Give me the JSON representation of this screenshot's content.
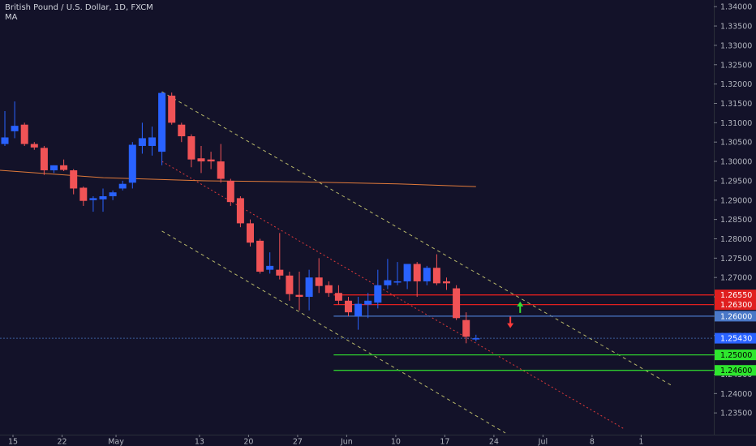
{
  "header": {
    "symbol": "British Pound / U.S. Dollar, 1D, FXCM",
    "indicator": "MA"
  },
  "colors": {
    "background": "#131229",
    "bull": "#2962ff",
    "bear": "#f05356",
    "ma": "#e07a3a",
    "channel": "#b8b86a",
    "midline": "#e03a3a",
    "res_line": "#e01f1f",
    "sup_line": "#2ecc2e",
    "current_line": "#3d5f9e",
    "axis_text": "#b2b5be",
    "arrow_up": "#33dd33",
    "arrow_down": "#ff3b3b"
  },
  "chart_data": {
    "type": "candlestick",
    "y_axis": {
      "range": [
        1.2298,
        1.3413
      ],
      "ticks": [
        "1.34000",
        "1.33500",
        "1.33000",
        "1.32500",
        "1.32000",
        "1.31500",
        "1.31000",
        "1.30500",
        "1.30000",
        "1.29500",
        "1.29000",
        "1.28500",
        "1.28000",
        "1.27500",
        "1.27000",
        "1.26500",
        "1.26000",
        "1.25500",
        "1.25000",
        "1.24500",
        "1.24000",
        "1.23500"
      ]
    },
    "x_axis": {
      "labels": [
        {
          "text": "15",
          "i": 0
        },
        {
          "text": "22",
          "i": 5
        },
        {
          "text": "May",
          "i": 10.5
        },
        {
          "text": "13",
          "i": 19
        },
        {
          "text": "20",
          "i": 24
        },
        {
          "text": "27",
          "i": 29
        },
        {
          "text": "Jun",
          "i": 34
        },
        {
          "text": "10",
          "i": 39
        },
        {
          "text": "17",
          "i": 44
        },
        {
          "text": "24",
          "i": 49
        },
        {
          "text": "Jul",
          "i": 54
        },
        {
          "text": "8",
          "i": 59
        },
        {
          "text": "1",
          "i": 64
        }
      ]
    },
    "candles": [
      {
        "o": 1.3045,
        "h": 1.313,
        "l": 1.304,
        "c": 1.3062
      },
      {
        "o": 1.3078,
        "h": 1.3155,
        "l": 1.306,
        "c": 1.3092
      },
      {
        "o": 1.3095,
        "h": 1.31,
        "l": 1.304,
        "c": 1.3045
      },
      {
        "o": 1.3045,
        "h": 1.305,
        "l": 1.303,
        "c": 1.3036
      },
      {
        "o": 1.3035,
        "h": 1.304,
        "l": 1.2965,
        "c": 1.2977
      },
      {
        "o": 1.2977,
        "h": 1.299,
        "l": 1.297,
        "c": 1.299
      },
      {
        "o": 1.299,
        "h": 1.3005,
        "l": 1.2975,
        "c": 1.2978
      },
      {
        "o": 1.2977,
        "h": 1.298,
        "l": 1.2915,
        "c": 1.293
      },
      {
        "o": 1.2932,
        "h": 1.2935,
        "l": 1.2885,
        "c": 1.2898
      },
      {
        "o": 1.29,
        "h": 1.291,
        "l": 1.287,
        "c": 1.2905
      },
      {
        "o": 1.2902,
        "h": 1.293,
        "l": 1.287,
        "c": 1.291
      },
      {
        "o": 1.291,
        "h": 1.2925,
        "l": 1.29,
        "c": 1.292
      },
      {
        "o": 1.293,
        "h": 1.295,
        "l": 1.2925,
        "c": 1.2942
      },
      {
        "o": 1.2945,
        "h": 1.305,
        "l": 1.293,
        "c": 1.3043
      },
      {
        "o": 1.304,
        "h": 1.31,
        "l": 1.302,
        "c": 1.306
      },
      {
        "o": 1.304,
        "h": 1.309,
        "l": 1.3015,
        "c": 1.3062
      },
      {
        "o": 1.3025,
        "h": 1.318,
        "l": 1.299,
        "c": 1.3177
      },
      {
        "o": 1.317,
        "h": 1.3178,
        "l": 1.3095,
        "c": 1.31
      },
      {
        "o": 1.3095,
        "h": 1.31,
        "l": 1.305,
        "c": 1.3065
      },
      {
        "o": 1.3065,
        "h": 1.307,
        "l": 1.2985,
        "c": 1.3005
      },
      {
        "o": 1.3008,
        "h": 1.304,
        "l": 1.297,
        "c": 1.3
      },
      {
        "o": 1.3005,
        "h": 1.3025,
        "l": 1.298,
        "c": 1.3
      },
      {
        "o": 1.3,
        "h": 1.3045,
        "l": 1.2945,
        "c": 1.2955
      },
      {
        "o": 1.295,
        "h": 1.2955,
        "l": 1.2885,
        "c": 1.2895
      },
      {
        "o": 1.2905,
        "h": 1.291,
        "l": 1.283,
        "c": 1.284
      },
      {
        "o": 1.284,
        "h": 1.285,
        "l": 1.278,
        "c": 1.279
      },
      {
        "o": 1.2795,
        "h": 1.28,
        "l": 1.271,
        "c": 1.2715
      },
      {
        "o": 1.272,
        "h": 1.2765,
        "l": 1.271,
        "c": 1.273
      },
      {
        "o": 1.272,
        "h": 1.2815,
        "l": 1.2695,
        "c": 1.2705
      },
      {
        "o": 1.2705,
        "h": 1.2715,
        "l": 1.264,
        "c": 1.2657
      },
      {
        "o": 1.2655,
        "h": 1.2715,
        "l": 1.2615,
        "c": 1.265
      },
      {
        "o": 1.265,
        "h": 1.272,
        "l": 1.2615,
        "c": 1.27
      },
      {
        "o": 1.27,
        "h": 1.275,
        "l": 1.266,
        "c": 1.2678
      },
      {
        "o": 1.268,
        "h": 1.269,
        "l": 1.265,
        "c": 1.266
      },
      {
        "o": 1.266,
        "h": 1.268,
        "l": 1.263,
        "c": 1.264
      },
      {
        "o": 1.264,
        "h": 1.265,
        "l": 1.26,
        "c": 1.261
      },
      {
        "o": 1.26,
        "h": 1.265,
        "l": 1.2565,
        "c": 1.2632
      },
      {
        "o": 1.263,
        "h": 1.266,
        "l": 1.2595,
        "c": 1.264
      },
      {
        "o": 1.2635,
        "h": 1.272,
        "l": 1.262,
        "c": 1.268
      },
      {
        "o": 1.268,
        "h": 1.2748,
        "l": 1.267,
        "c": 1.2693
      },
      {
        "o": 1.269,
        "h": 1.274,
        "l": 1.268,
        "c": 1.269
      },
      {
        "o": 1.269,
        "h": 1.273,
        "l": 1.267,
        "c": 1.2735
      },
      {
        "o": 1.2735,
        "h": 1.274,
        "l": 1.265,
        "c": 1.269
      },
      {
        "o": 1.269,
        "h": 1.273,
        "l": 1.268,
        "c": 1.2725
      },
      {
        "o": 1.2725,
        "h": 1.276,
        "l": 1.268,
        "c": 1.2685
      },
      {
        "o": 1.269,
        "h": 1.27,
        "l": 1.2668,
        "c": 1.2685
      },
      {
        "o": 1.2672,
        "h": 1.268,
        "l": 1.259,
        "c": 1.2595
      },
      {
        "o": 1.259,
        "h": 1.261,
        "l": 1.253,
        "c": 1.2547
      },
      {
        "o": 1.2543,
        "h": 1.2552,
        "l": 1.2535,
        "c": 1.2543
      }
    ],
    "moving_average": [
      {
        "i": -0.5,
        "v": 1.2977
      },
      {
        "i": 10,
        "v": 1.2958
      },
      {
        "i": 20,
        "v": 1.295
      },
      {
        "i": 30,
        "v": 1.2947
      },
      {
        "i": 40,
        "v": 1.2942
      },
      {
        "i": 48,
        "v": 1.2935
      }
    ],
    "channel": {
      "upper": [
        {
          "i": 16,
          "v": 1.318
        },
        {
          "i": 68,
          "v": 1.242
        }
      ],
      "middle": [
        {
          "i": 16,
          "v": 1.3
        },
        {
          "i": 63,
          "v": 1.231
        }
      ],
      "lower": [
        {
          "i": 16,
          "v": 1.282
        },
        {
          "i": 51,
          "v": 1.2298
        }
      ]
    },
    "horizontal_levels": [
      {
        "price": 1.2655,
        "label": "1.26550",
        "kind": "resistance",
        "from_i": 33.5
      },
      {
        "price": 1.263,
        "label": "1.26300",
        "kind": "resistance",
        "from_i": 33.5
      },
      {
        "price": 1.26,
        "label": "1.26000",
        "kind": "pivot",
        "from_i": 33.5
      },
      {
        "price": 1.2543,
        "label": "1.25430",
        "kind": "current",
        "from_i": -0.5
      },
      {
        "price": 1.25,
        "label": "1.25000",
        "kind": "support",
        "from_i": 33.5
      },
      {
        "price": 1.246,
        "label": "1.24600",
        "kind": "support",
        "from_i": 33.5
      }
    ],
    "arrows": [
      {
        "i": 52.5,
        "v": 1.2621,
        "direction": "up"
      },
      {
        "i": 51.5,
        "v": 1.2586,
        "direction": "down"
      }
    ]
  }
}
